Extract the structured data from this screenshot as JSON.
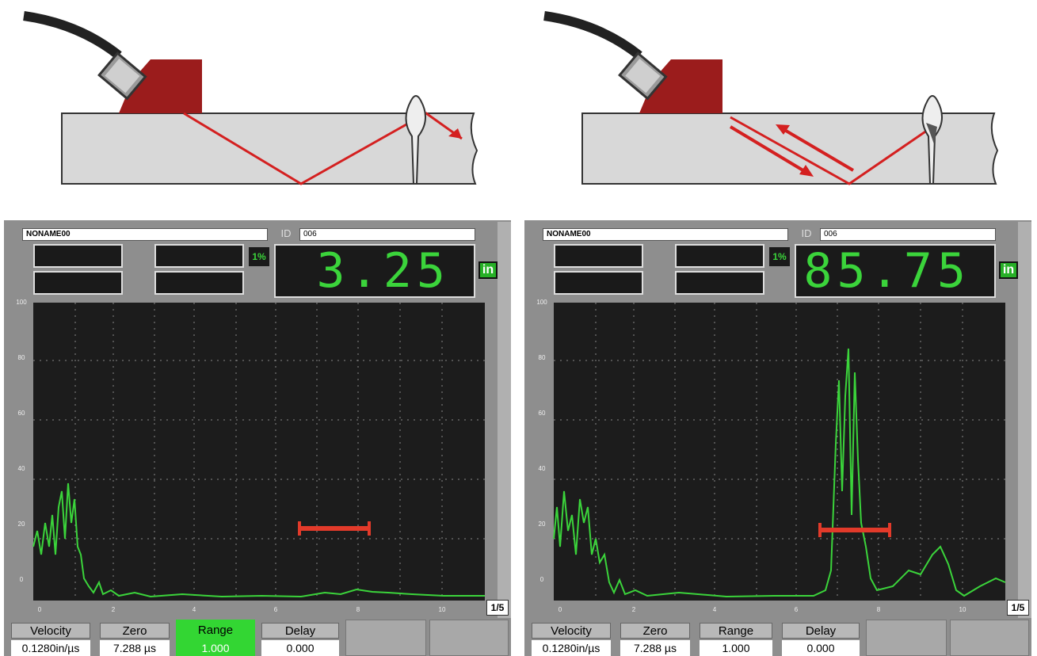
{
  "panels": [
    {
      "file": "NONAME00",
      "id_label": "ID",
      "id_value": "006",
      "gain": "1%",
      "reading": "3.25",
      "unit": "in",
      "y_labels": [
        100,
        80,
        60,
        40,
        20,
        0
      ],
      "x_labels": [
        0,
        2,
        4,
        6,
        8,
        10
      ],
      "page": "1/5",
      "buttons": [
        {
          "label": "Velocity",
          "value": "0.1280in/µs"
        },
        {
          "label": "Zero",
          "value": "7.288 µs"
        },
        {
          "label": "Range",
          "value": "1.000"
        },
        {
          "label": "Delay",
          "value": "0.000"
        }
      ]
    },
    {
      "file": "NONAME00",
      "id_label": "ID",
      "id_value": "006",
      "gain": "1%",
      "reading": "85.75",
      "unit": "in",
      "y_labels": [
        100,
        80,
        60,
        40,
        20,
        0
      ],
      "x_labels": [
        0,
        2,
        4,
        6,
        8,
        10
      ],
      "page": "1/5",
      "buttons": [
        {
          "label": "Velocity",
          "value": "0.1280in/µs"
        },
        {
          "label": "Zero",
          "value": "7.288 µs"
        },
        {
          "label": "Range",
          "value": "1.000"
        },
        {
          "label": "Delay",
          "value": "0.000"
        }
      ]
    }
  ]
}
